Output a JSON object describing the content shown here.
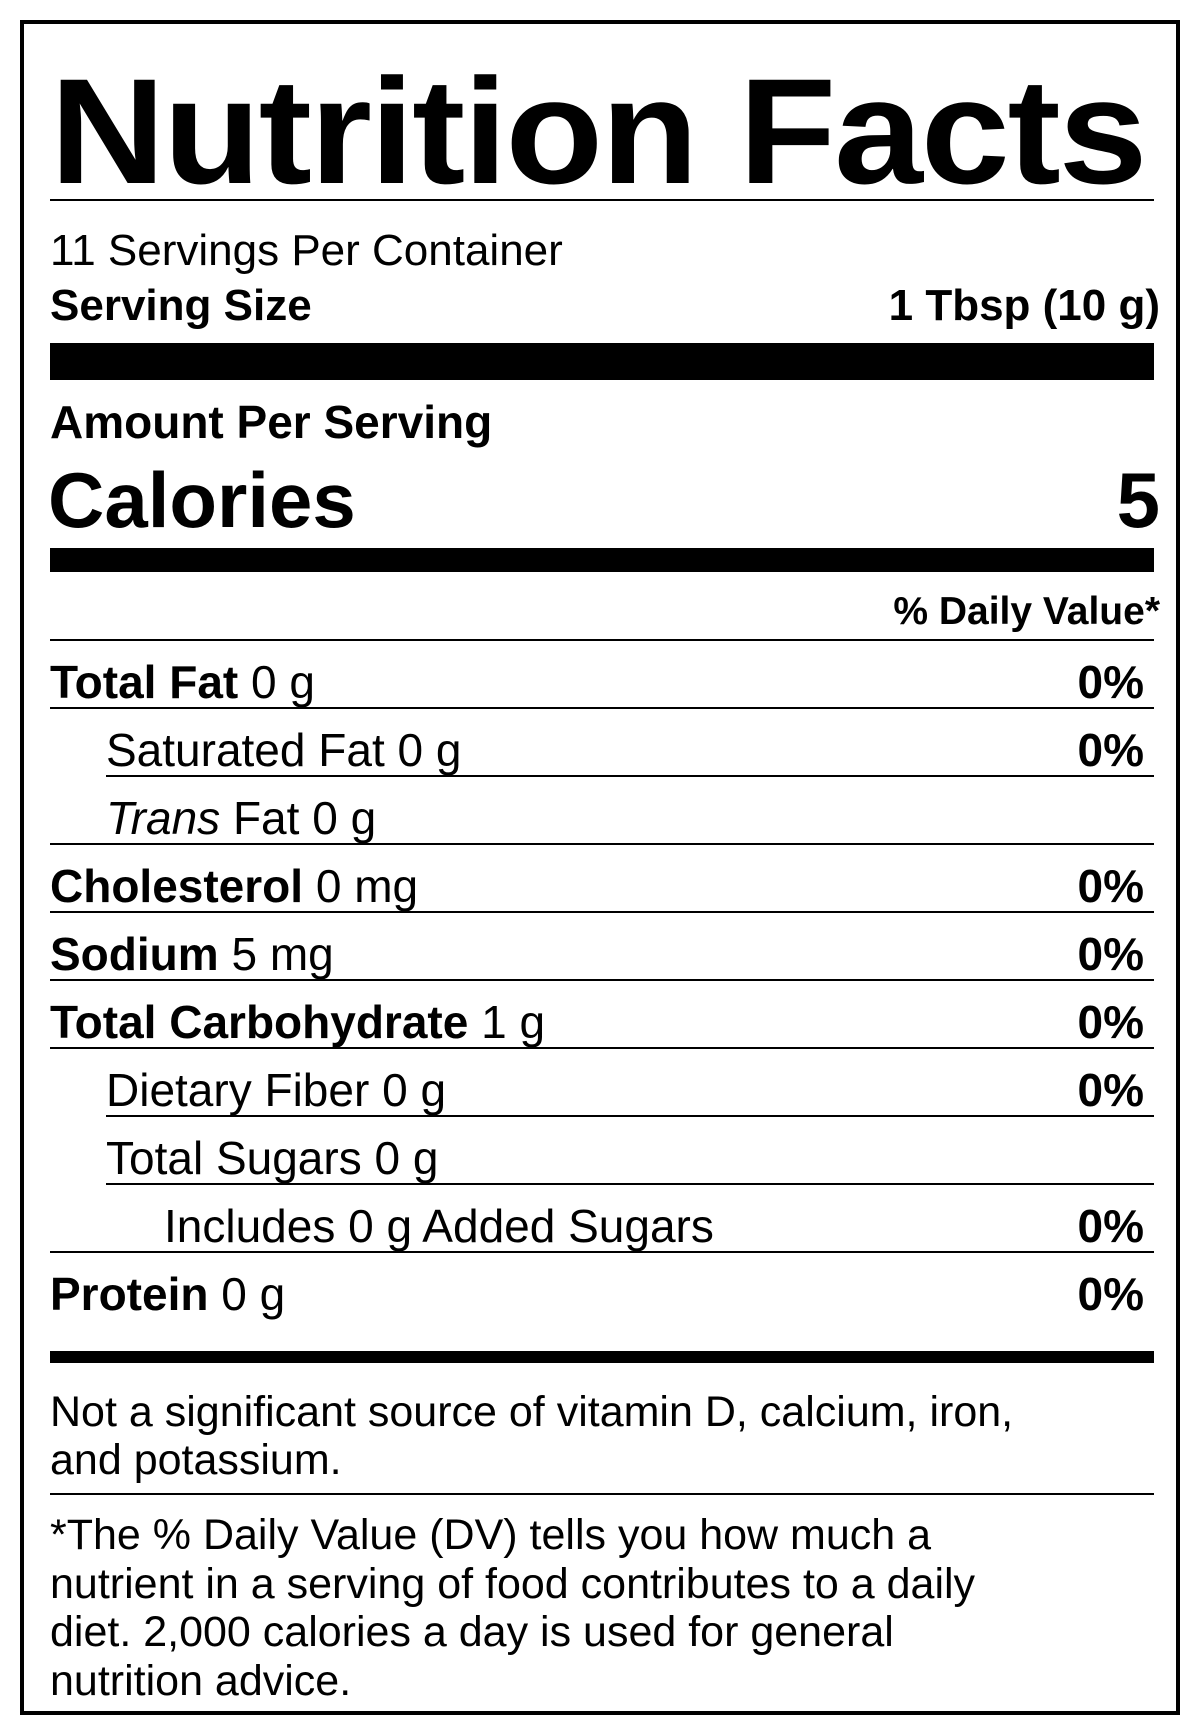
{
  "title": "Nutrition Facts",
  "servings_per_container": "11 Servings Per Container",
  "serving_size_label": "Serving Size",
  "serving_size_value": "1 Tbsp (10 g)",
  "amount_per_serving": "Amount Per Serving",
  "calories_label": "Calories",
  "calories_value": "5",
  "daily_value_header": "% Daily Value*",
  "nutrients": [
    {
      "name": "Total Fat",
      "amount": "0 g",
      "dv": "0%",
      "bold": true,
      "indent": 0,
      "italic_name": false
    },
    {
      "name": "Saturated Fat",
      "amount": "0 g",
      "dv": "0%",
      "bold": false,
      "indent": 1,
      "italic_name": false
    },
    {
      "name": "Trans",
      "suffix": " Fat",
      "amount": "0 g",
      "dv": "",
      "bold": false,
      "indent": 1,
      "italic_name": true
    },
    {
      "name": "Cholesterol",
      "amount": "0 mg",
      "dv": "0%",
      "bold": true,
      "indent": 0,
      "italic_name": false
    },
    {
      "name": "Sodium",
      "amount": "5 mg",
      "dv": "0%",
      "bold": true,
      "indent": 0,
      "italic_name": false
    },
    {
      "name": "Total Carbohydrate",
      "amount": "1 g",
      "dv": "0%",
      "bold": true,
      "indent": 0,
      "italic_name": false
    },
    {
      "name": "Dietary Fiber",
      "amount": "0 g",
      "dv": "0%",
      "bold": false,
      "indent": 1,
      "italic_name": false
    },
    {
      "name": "Total Sugars",
      "amount": "0 g",
      "dv": "",
      "bold": false,
      "indent": 1,
      "italic_name": false
    },
    {
      "name": "Includes 0 g Added Sugars",
      "amount": "",
      "dv": "0%",
      "bold": false,
      "indent": 2,
      "italic_name": false
    },
    {
      "name": "Protein",
      "amount": "0 g",
      "dv": "0%",
      "bold": true,
      "indent": 0,
      "italic_name": false
    }
  ],
  "not_significant_line1": "Not a significant source of vitamin D, calcium, iron,",
  "not_significant_line2": "and potassium.",
  "footnote_lines": [
    "*The % Daily Value (DV) tells you how much a",
    "nutrient in a serving of food contributes to a daily",
    "diet. 2,000 calories a day is used for general",
    "nutrition advice."
  ]
}
